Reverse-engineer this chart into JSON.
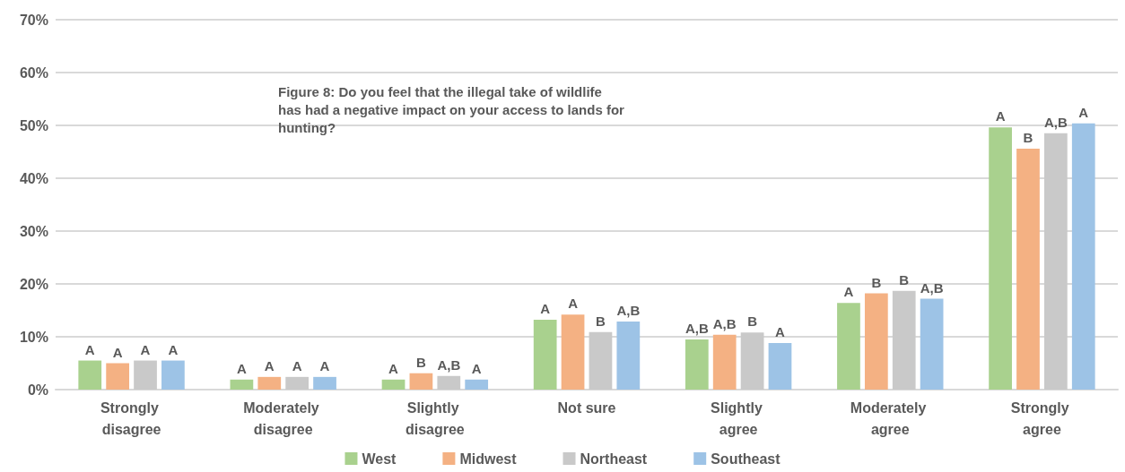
{
  "chart_data": {
    "type": "bar",
    "title": "Figure 8: Do you feel that the illegal take of wildlife has had a negative impact on your access to lands for hunting?",
    "categories": [
      "Strongly disagree",
      "Moderately disagree",
      "Slightly disagree",
      "Not sure",
      "Slightly agree",
      "Moderately agree",
      "Strongly agree"
    ],
    "series": [
      {
        "name": "West",
        "color": "#a9d18e",
        "values": [
          5.5,
          1.9,
          1.9,
          13.2,
          9.5,
          16.4,
          49.6
        ],
        "value_labels": [
          "A",
          "A",
          "A",
          "A",
          "A,B",
          "A",
          "A"
        ]
      },
      {
        "name": "Midwest",
        "color": "#f4b183",
        "values": [
          5.0,
          2.4,
          3.1,
          14.2,
          10.4,
          18.2,
          45.6
        ],
        "value_labels": [
          "A",
          "A",
          "B",
          "A",
          "A,B",
          "B",
          "B"
        ]
      },
      {
        "name": "Northeast",
        "color": "#c9c9c9",
        "values": [
          5.5,
          2.4,
          2.6,
          10.9,
          10.8,
          18.7,
          48.5
        ],
        "value_labels": [
          "A",
          "A",
          "A,B",
          "B",
          "B",
          "B",
          "A,B"
        ]
      },
      {
        "name": "Southeast",
        "color": "#9dc3e6",
        "values": [
          5.5,
          2.4,
          1.9,
          12.9,
          8.8,
          17.2,
          50.4
        ],
        "value_labels": [
          "A",
          "A",
          "A",
          "A,B",
          "A",
          "A,B",
          "A"
        ]
      }
    ],
    "ylim": [
      0,
      70
    ],
    "yticks": [
      {
        "value": 0,
        "label": "0%"
      },
      {
        "value": 10,
        "label": "10%"
      },
      {
        "value": 20,
        "label": "20%"
      },
      {
        "value": 30,
        "label": "30%"
      },
      {
        "value": 40,
        "label": "40%"
      },
      {
        "value": 50,
        "label": "50%"
      },
      {
        "value": 60,
        "label": "60%"
      },
      {
        "value": 70,
        "label": "70%"
      }
    ],
    "grid": "y",
    "legend": "bottom"
  }
}
